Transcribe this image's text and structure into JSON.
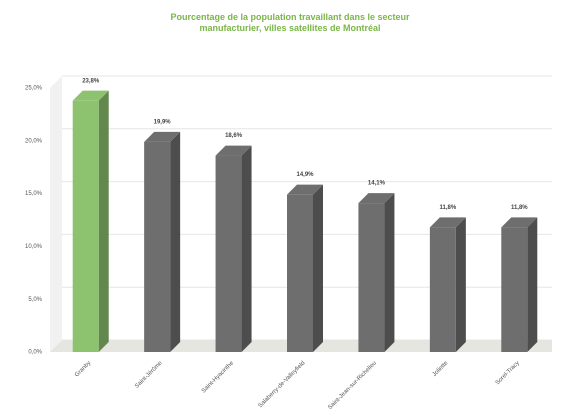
{
  "chart_data": {
    "type": "bar",
    "title": "Pourcentage de la population travaillant dans le secteur manufacturier, villes satellites de Montréal",
    "categories": [
      "Granby",
      "Saint-Jérôme",
      "Saint-Hyacinthe",
      "Salaberry-de-Valleyfield",
      "Saint-Jean-sur-Richelieu",
      "Joliette",
      "Sorel-Tracy"
    ],
    "values": [
      23.8,
      19.9,
      18.6,
      14.9,
      14.1,
      11.8,
      11.8
    ],
    "value_labels": [
      "23,8%",
      "19,9%",
      "18,6%",
      "14,9%",
      "14,1%",
      "11,8%",
      "11,8%"
    ],
    "colors": [
      "#8dc26f",
      "#6e6e6e",
      "#6e6e6e",
      "#6e6e6e",
      "#6e6e6e",
      "#6e6e6e",
      "#6e6e6e"
    ],
    "ylim": [
      0,
      25
    ],
    "yticks": [
      {
        "value": 0,
        "label": "0,0%"
      },
      {
        "value": 5,
        "label": "5,0%"
      },
      {
        "value": 10,
        "label": "10,0%"
      },
      {
        "value": 15,
        "label": "15,0%"
      },
      {
        "value": 20,
        "label": "20,0%"
      },
      {
        "value": 25,
        "label": "25,0%"
      }
    ],
    "grid": true
  }
}
